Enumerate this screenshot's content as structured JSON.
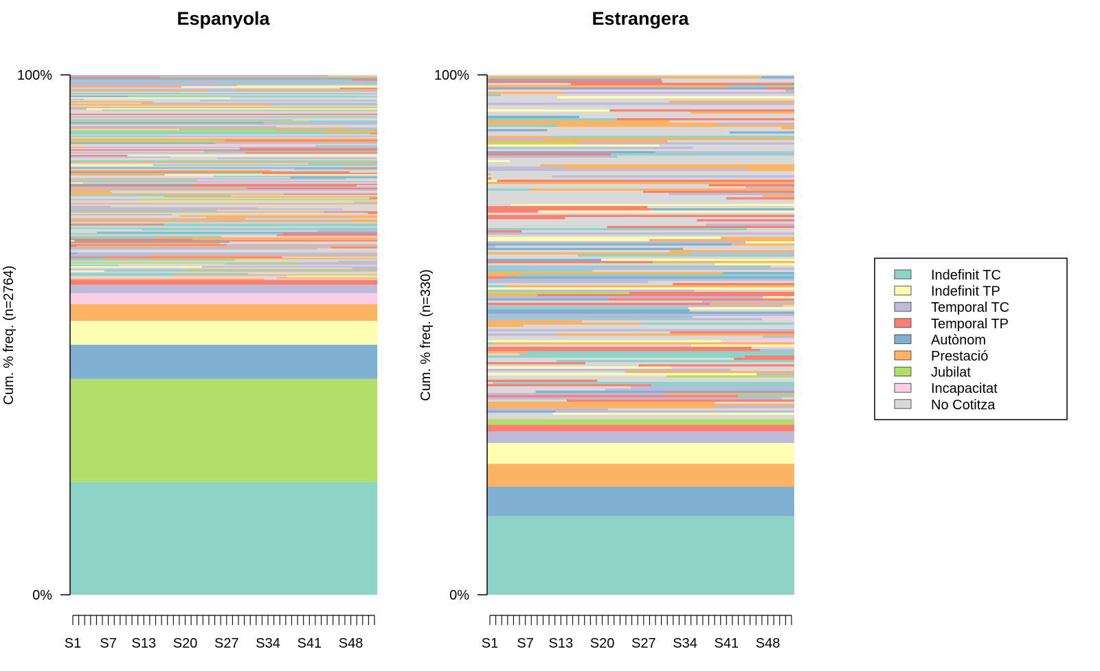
{
  "chart_data": [
    {
      "type": "area",
      "title": "Espanyola",
      "ylabel": "Cum. % freq. (n=2764)",
      "yticks": [
        "0%",
        "100%"
      ],
      "xticks": [
        "S1",
        "S7",
        "S13",
        "S20",
        "S27",
        "S34",
        "S41",
        "S48"
      ],
      "n_periods": 52,
      "stable_bands_bottom_up": [
        {
          "state": "Indefinit TC",
          "share": 21.7
        },
        {
          "state": "Jubilat",
          "share": 19.8
        },
        {
          "state": "Autònom",
          "share": 6.6
        },
        {
          "state": "Indefinit TP",
          "share": 4.6
        },
        {
          "state": "Prestació",
          "share": 3.2
        },
        {
          "state": "Incapacitat",
          "share": 2.1
        },
        {
          "state": "Temporal TC",
          "share": 1.6
        },
        {
          "state": "Temporal TP",
          "share": 1.0
        }
      ],
      "mixed_region_percent": [
        60.6,
        100
      ]
    },
    {
      "type": "area",
      "title": "Estrangera",
      "ylabel": "Cum. % freq. (n=330)",
      "yticks": [
        "0%",
        "100%"
      ],
      "xticks": [
        "S1",
        "S7",
        "S13",
        "S20",
        "S27",
        "S34",
        "S41",
        "S48"
      ],
      "n_periods": 52,
      "stable_bands_bottom_up": [
        {
          "state": "Indefinit TC",
          "share": 15.1
        },
        {
          "state": "Autònom",
          "share": 5.7
        },
        {
          "state": "Prestació",
          "share": 4.4
        },
        {
          "state": "Indefinit TP",
          "share": 4.0
        },
        {
          "state": "Temporal TC",
          "share": 2.2
        },
        {
          "state": "Temporal TP",
          "share": 1.3
        },
        {
          "state": "Jubilat",
          "share": 1.1
        }
      ],
      "mixed_region_percent": [
        33.8,
        100
      ]
    }
  ],
  "legend": [
    {
      "label": "Indefinit TC",
      "color": "#8ed3c7"
    },
    {
      "label": "Indefinit TP",
      "color": "#ffffb3"
    },
    {
      "label": "Temporal TC",
      "color": "#bebada"
    },
    {
      "label": "Temporal TP",
      "color": "#fb8072"
    },
    {
      "label": "Autònom",
      "color": "#80b1d3"
    },
    {
      "label": "Prestació",
      "color": "#fdb462"
    },
    {
      "label": "Jubilat",
      "color": "#b3de69"
    },
    {
      "label": "Incapacitat",
      "color": "#fccde5"
    },
    {
      "label": "No Cotitza",
      "color": "#d9d9d9"
    }
  ]
}
